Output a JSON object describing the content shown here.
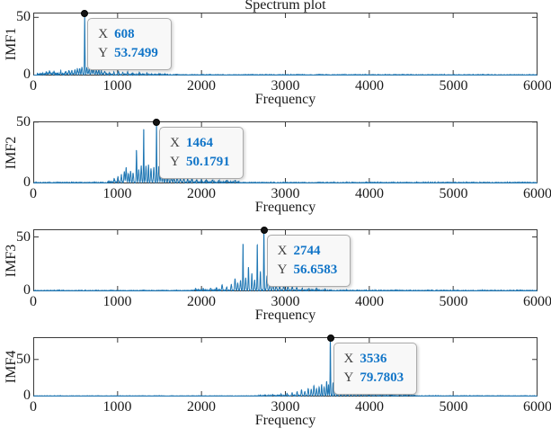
{
  "colors": {
    "line": "#1f77b4",
    "axis": "#3a3a3a",
    "tick_text": "#1a1a1a",
    "marker": "#141414",
    "datatip_bg": "#f8f8f8",
    "datatip_border": "#ababab",
    "datatip_label": "#3f3f3f",
    "datatip_value": "#1175c8"
  },
  "chart_data": {
    "type": "line",
    "title": "Spectrum plot",
    "xlabel": "Frequency",
    "xlim": [
      0,
      6000
    ],
    "xticks": [
      0,
      1000,
      2000,
      3000,
      4000,
      5000,
      6000
    ],
    "xticklabels": [
      "0",
      "1000",
      "2000",
      "3000",
      "4000",
      "5000",
      "6000"
    ],
    "grid": false,
    "legend": false,
    "datatip_x_label": "X",
    "datatip_y_label": "Y",
    "subplots": [
      {
        "ylabel": "IMF1",
        "ylim": [
          0,
          53.7499
        ],
        "yticks": [
          "0",
          "50"
        ],
        "peak": {
          "x": 608,
          "y": 53.7499
        },
        "datatip": {
          "x": "608",
          "y": "53.7499"
        },
        "peaks": [
          [
            150,
            1.5
          ],
          [
            190,
            2.2
          ],
          [
            240,
            1.8
          ],
          [
            320,
            2.6
          ],
          [
            380,
            2.2
          ],
          [
            420,
            3.2
          ],
          [
            455,
            2.4
          ],
          [
            490,
            3.5
          ],
          [
            520,
            4.2
          ],
          [
            548,
            5
          ],
          [
            575,
            6.5
          ],
          [
            608,
            53.7499
          ],
          [
            634,
            6
          ],
          [
            660,
            4.5
          ],
          [
            690,
            7
          ],
          [
            715,
            5
          ],
          [
            745,
            3.5
          ],
          [
            775,
            4
          ],
          [
            805,
            2.8
          ],
          [
            845,
            2.2
          ],
          [
            900,
            1.8
          ],
          [
            955,
            2
          ],
          [
            1010,
            2.4
          ],
          [
            1060,
            2
          ],
          [
            1120,
            2.2
          ],
          [
            1180,
            1.6
          ],
          [
            1260,
            1.4
          ],
          [
            1350,
            1
          ],
          [
            1500,
            0.8
          ],
          [
            1700,
            0.7
          ]
        ],
        "noise_bands": [
          [
            40,
            880,
            1.1
          ],
          [
            880,
            1600,
            0.5
          ],
          [
            1600,
            6000,
            0.22
          ]
        ]
      },
      {
        "ylabel": "IMF2",
        "ylim": [
          0,
          50.1791
        ],
        "yticks": [
          "0",
          "50"
        ],
        "peak": {
          "x": 1464,
          "y": 50.1791
        },
        "datatip": {
          "x": "1464",
          "y": "50.1791"
        },
        "peaks": [
          [
            960,
            2.5
          ],
          [
            1005,
            4
          ],
          [
            1045,
            6
          ],
          [
            1080,
            9
          ],
          [
            1102,
            12
          ],
          [
            1128,
            7
          ],
          [
            1155,
            9
          ],
          [
            1185,
            7
          ],
          [
            1225,
            27
          ],
          [
            1252,
            11
          ],
          [
            1282,
            13
          ],
          [
            1311,
            45
          ],
          [
            1338,
            13
          ],
          [
            1368,
            15
          ],
          [
            1398,
            11
          ],
          [
            1432,
            13
          ],
          [
            1464,
            50.1791
          ],
          [
            1492,
            13
          ],
          [
            1518,
            10
          ],
          [
            1545,
            8
          ],
          [
            1575,
            8
          ],
          [
            1605,
            6
          ],
          [
            1640,
            6.5
          ],
          [
            1672,
            4.5
          ],
          [
            1710,
            5
          ],
          [
            1748,
            3.5
          ],
          [
            1790,
            4.2
          ],
          [
            1835,
            3
          ],
          [
            1885,
            3.2
          ],
          [
            1940,
            2.2
          ],
          [
            2000,
            2.6
          ],
          [
            2060,
            2
          ],
          [
            2130,
            1.8
          ],
          [
            2210,
            1.6
          ],
          [
            2300,
            1.3
          ],
          [
            2400,
            1
          ]
        ],
        "noise_bands": [
          [
            880,
            2450,
            0.75
          ],
          [
            0,
            880,
            0.28
          ],
          [
            2450,
            6000,
            0.26
          ]
        ]
      },
      {
        "ylabel": "IMF3",
        "ylim": [
          0,
          56.6583
        ],
        "yticks": [
          "0",
          "50"
        ],
        "peak": {
          "x": 2744,
          "y": 56.6583
        },
        "datatip": {
          "x": "2744",
          "y": "56.6583"
        },
        "peaks": [
          [
            1930,
            1.4
          ],
          [
            2020,
            1.6
          ],
          [
            2110,
            1.8
          ],
          [
            2180,
            2.2
          ],
          [
            2245,
            5.5
          ],
          [
            2300,
            3
          ],
          [
            2355,
            5
          ],
          [
            2400,
            11
          ],
          [
            2432,
            7
          ],
          [
            2465,
            9
          ],
          [
            2495,
            45
          ],
          [
            2527,
            12
          ],
          [
            2560,
            22
          ],
          [
            2600,
            16
          ],
          [
            2633,
            10
          ],
          [
            2665,
            44
          ],
          [
            2702,
            18
          ],
          [
            2744,
            56.6583
          ],
          [
            2780,
            14
          ],
          [
            2816,
            8
          ],
          [
            2852,
            10
          ],
          [
            2890,
            6
          ],
          [
            2932,
            4.5
          ],
          [
            2980,
            5
          ],
          [
            3030,
            3.2
          ],
          [
            3082,
            4
          ],
          [
            3135,
            2.6
          ],
          [
            3200,
            2.2
          ],
          [
            3280,
            1.8
          ],
          [
            3370,
            1.5
          ],
          [
            3470,
            1.2
          ]
        ],
        "noise_bands": [
          [
            1880,
            3550,
            0.55
          ],
          [
            0,
            1880,
            0.24
          ],
          [
            3550,
            6000,
            0.28
          ]
        ]
      },
      {
        "ylabel": "IMF4",
        "ylim": [
          0,
          79.7803
        ],
        "yticks": [
          "0",
          "50"
        ],
        "peak": {
          "x": 3536,
          "y": 79.7803
        },
        "datatip": {
          "x": "3536",
          "y": "79.7803"
        },
        "peaks": [
          [
            2760,
            1.4
          ],
          [
            2850,
            1.8
          ],
          [
            2950,
            2.4
          ],
          [
            3020,
            3
          ],
          [
            3080,
            4
          ],
          [
            3140,
            5.5
          ],
          [
            3192,
            8
          ],
          [
            3232,
            6
          ],
          [
            3272,
            10
          ],
          [
            3308,
            9
          ],
          [
            3340,
            14
          ],
          [
            3372,
            10
          ],
          [
            3402,
            12
          ],
          [
            3432,
            16
          ],
          [
            3462,
            12
          ],
          [
            3492,
            20
          ],
          [
            3514,
            15
          ],
          [
            3536,
            79.7803
          ],
          [
            3568,
            18
          ],
          [
            3600,
            10
          ],
          [
            3640,
            8
          ],
          [
            3682,
            9
          ],
          [
            3722,
            8
          ],
          [
            3762,
            12
          ],
          [
            3802,
            9
          ],
          [
            3842,
            10
          ],
          [
            3882,
            6.5
          ],
          [
            3922,
            5
          ],
          [
            3970,
            4.2
          ],
          [
            4022,
            5
          ],
          [
            4080,
            3.2
          ],
          [
            4150,
            2.6
          ],
          [
            4250,
            2
          ],
          [
            4360,
            1.5
          ],
          [
            4470,
            1.1
          ]
        ],
        "noise_bands": [
          [
            2680,
            4550,
            0.55
          ],
          [
            0,
            2680,
            0.22
          ],
          [
            4550,
            6000,
            0.26
          ]
        ]
      }
    ]
  }
}
